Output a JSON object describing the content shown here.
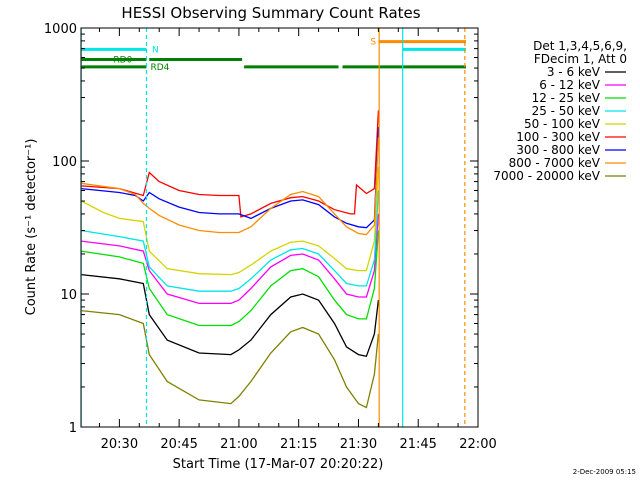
{
  "chart_data": {
    "type": "line",
    "title": "HESSI Observing Summary Count Rates",
    "xlabel": "Start Time (17-Mar-07 20:20:22)",
    "ylabel": "Count Rate (s⁻¹ detector⁻¹)",
    "x_range_minutes": [
      20.37,
      120.0
    ],
    "ylim": [
      1,
      1000
    ],
    "y_scale": "log",
    "x_ticks": [
      {
        "t": 30,
        "label": "20:30"
      },
      {
        "t": 45,
        "label": "20:45"
      },
      {
        "t": 60,
        "label": "21:00"
      },
      {
        "t": 75,
        "label": "21:15"
      },
      {
        "t": 90,
        "label": "21:30"
      },
      {
        "t": 105,
        "label": "21:45"
      },
      {
        "t": 120,
        "label": "22:00"
      }
    ],
    "y_ticks": [
      {
        "v": 1,
        "label": "1"
      },
      {
        "v": 10,
        "label": "10"
      },
      {
        "v": 100,
        "label": "100"
      },
      {
        "v": 1000,
        "label": "1000"
      }
    ],
    "legend_header": [
      "Det 1,3,4,5,6,9,",
      "FDecim 1, Att 0"
    ],
    "legend_placement": "right",
    "series": [
      {
        "name": "3 - 6 keV",
        "color": "#000000",
        "points": [
          [
            20.4,
            14
          ],
          [
            30,
            13
          ],
          [
            36,
            12
          ],
          [
            37.5,
            7
          ],
          [
            42,
            4.5
          ],
          [
            50,
            3.6
          ],
          [
            58,
            3.5
          ],
          [
            60,
            3.8
          ],
          [
            63,
            4.5
          ],
          [
            68,
            7
          ],
          [
            73,
            9.5
          ],
          [
            76,
            10
          ],
          [
            80,
            9
          ],
          [
            84,
            6
          ],
          [
            87,
            4
          ],
          [
            90,
            3.5
          ],
          [
            92,
            3.4
          ],
          [
            94,
            5
          ],
          [
            95,
            9
          ]
        ]
      },
      {
        "name": "6 - 12 keV",
        "color": "#ff00ff",
        "points": [
          [
            20.4,
            25
          ],
          [
            30,
            23
          ],
          [
            36,
            21
          ],
          [
            37.5,
            15
          ],
          [
            42,
            10
          ],
          [
            50,
            8.5
          ],
          [
            58,
            8.5
          ],
          [
            60,
            9
          ],
          [
            63,
            11
          ],
          [
            68,
            16
          ],
          [
            73,
            19.5
          ],
          [
            76,
            20
          ],
          [
            80,
            18
          ],
          [
            84,
            13
          ],
          [
            87,
            10
          ],
          [
            90,
            9.5
          ],
          [
            92,
            9.5
          ],
          [
            94,
            15
          ],
          [
            95,
            40
          ]
        ]
      },
      {
        "name": "12 - 25 keV",
        "color": "#00e000",
        "points": [
          [
            20.4,
            21
          ],
          [
            30,
            19
          ],
          [
            36,
            17
          ],
          [
            37.5,
            11
          ],
          [
            42,
            7
          ],
          [
            50,
            5.8
          ],
          [
            58,
            5.8
          ],
          [
            60,
            6.2
          ],
          [
            63,
            7.5
          ],
          [
            68,
            11.5
          ],
          [
            73,
            15
          ],
          [
            76,
            15.5
          ],
          [
            80,
            13.5
          ],
          [
            84,
            9
          ],
          [
            87,
            7
          ],
          [
            90,
            6.5
          ],
          [
            92,
            6.5
          ],
          [
            94,
            11
          ],
          [
            95,
            30
          ]
        ]
      },
      {
        "name": "25 - 50 keV",
        "color": "#00e5e5",
        "points": [
          [
            20.4,
            30
          ],
          [
            30,
            27
          ],
          [
            36,
            25
          ],
          [
            37.5,
            16
          ],
          [
            42,
            11.5
          ],
          [
            50,
            10.5
          ],
          [
            58,
            10.5
          ],
          [
            60,
            11
          ],
          [
            63,
            13
          ],
          [
            68,
            18
          ],
          [
            73,
            21.5
          ],
          [
            76,
            22
          ],
          [
            80,
            20
          ],
          [
            84,
            15
          ],
          [
            87,
            12
          ],
          [
            90,
            11.5
          ],
          [
            92,
            11.5
          ],
          [
            94,
            18
          ],
          [
            95,
            60
          ]
        ]
      },
      {
        "name": "50 - 100 keV",
        "color": "#d4d400",
        "points": [
          [
            20.4,
            50
          ],
          [
            26,
            41
          ],
          [
            30,
            37
          ],
          [
            36,
            35
          ],
          [
            37.5,
            21
          ],
          [
            42,
            15.5
          ],
          [
            50,
            14.2
          ],
          [
            58,
            14
          ],
          [
            60,
            14.5
          ],
          [
            63,
            16.5
          ],
          [
            68,
            21
          ],
          [
            73,
            24.5
          ],
          [
            76,
            25
          ],
          [
            80,
            23
          ],
          [
            84,
            18.5
          ],
          [
            87,
            15.5
          ],
          [
            90,
            15
          ],
          [
            92,
            15
          ],
          [
            94,
            25
          ],
          [
            95,
            90
          ]
        ]
      },
      {
        "name": "100 - 300 keV",
        "color": "#ff0000",
        "points": [
          [
            20.4,
            65
          ],
          [
            30,
            62
          ],
          [
            36,
            55
          ],
          [
            37.5,
            82
          ],
          [
            40,
            70
          ],
          [
            45,
            60
          ],
          [
            50,
            56
          ],
          [
            55,
            55
          ],
          [
            60,
            55
          ],
          [
            60.5,
            38
          ],
          [
            63,
            40
          ],
          [
            68,
            48
          ],
          [
            73,
            53
          ],
          [
            76,
            54
          ],
          [
            80,
            50
          ],
          [
            84,
            43
          ],
          [
            88,
            40
          ],
          [
            89,
            40
          ],
          [
            89.5,
            66
          ],
          [
            92,
            57
          ],
          [
            94,
            62
          ],
          [
            95,
            240
          ]
        ]
      },
      {
        "name": "300 - 800 keV",
        "color": "#0000ff",
        "points": [
          [
            20.4,
            62
          ],
          [
            30,
            58
          ],
          [
            34,
            55
          ],
          [
            36,
            50
          ],
          [
            37.5,
            58
          ],
          [
            40,
            52
          ],
          [
            45,
            45
          ],
          [
            50,
            41
          ],
          [
            55,
            40
          ],
          [
            60,
            40
          ],
          [
            63,
            37
          ],
          [
            68,
            44
          ],
          [
            73,
            50
          ],
          [
            76,
            51
          ],
          [
            80,
            47
          ],
          [
            84,
            38
          ],
          [
            87,
            34
          ],
          [
            90,
            32
          ],
          [
            92,
            31.5
          ],
          [
            94,
            36
          ],
          [
            95,
            180
          ]
        ]
      },
      {
        "name": "800 - 7000 keV",
        "color": "#ff8c00",
        "points": [
          [
            20.4,
            68
          ],
          [
            30,
            62
          ],
          [
            34,
            56
          ],
          [
            36,
            48
          ],
          [
            37.5,
            44
          ],
          [
            40,
            39
          ],
          [
            45,
            33
          ],
          [
            50,
            30
          ],
          [
            55,
            29
          ],
          [
            60,
            29
          ],
          [
            63,
            32
          ],
          [
            68,
            44
          ],
          [
            73,
            56
          ],
          [
            76,
            59
          ],
          [
            80,
            54
          ],
          [
            84,
            40
          ],
          [
            87,
            32
          ],
          [
            90,
            28.5
          ],
          [
            92,
            28
          ],
          [
            94,
            33
          ],
          [
            95,
            150
          ]
        ]
      },
      {
        "name": "7000 - 20000 keV",
        "color": "#808000",
        "points": [
          [
            20.4,
            7.5
          ],
          [
            30,
            7
          ],
          [
            36,
            6
          ],
          [
            37.5,
            3.5
          ],
          [
            42,
            2.2
          ],
          [
            50,
            1.6
          ],
          [
            58,
            1.5
          ],
          [
            60,
            1.7
          ],
          [
            63,
            2.2
          ],
          [
            68,
            3.6
          ],
          [
            73,
            5.2
          ],
          [
            76,
            5.6
          ],
          [
            80,
            5
          ],
          [
            84,
            3.2
          ],
          [
            87,
            2
          ],
          [
            90,
            1.5
          ],
          [
            92,
            1.4
          ],
          [
            94,
            2.5
          ],
          [
            95,
            5
          ]
        ]
      }
    ],
    "markers": [
      {
        "label": "",
        "color": "#00e5e5",
        "t": 20.4,
        "style": "solid"
      },
      {
        "label": "",
        "color": "#00e5e5",
        "t": 36.8,
        "style": "dashed"
      },
      {
        "label": "",
        "color": "#ff8c00",
        "t": 95.2,
        "style": "solid"
      },
      {
        "label": "",
        "color": "#00e5e5",
        "t": 101.1,
        "style": "solid"
      },
      {
        "label": "",
        "color": "#ff8c00",
        "t": 116.7,
        "style": "dashed"
      }
    ],
    "state_bars": [
      {
        "color": "#00e5e5",
        "label": "N",
        "label_t": 38.2,
        "level": 690,
        "segments": [
          [
            20.4,
            36.8
          ]
        ]
      },
      {
        "color": "#00e5e5",
        "label": "",
        "label_t": 0,
        "level": 690,
        "segments": [
          [
            101.1,
            117.0
          ]
        ]
      },
      {
        "color": "#008000",
        "label": "RD0",
        "label_t": 28.5,
        "level": 580,
        "segments": [
          [
            20.4,
            36.8
          ],
          [
            37.5,
            60.8
          ]
        ]
      },
      {
        "color": "#008000",
        "label": "RD4",
        "label_t": 37.8,
        "level": 510,
        "segments": [
          [
            20.4,
            36.8
          ],
          [
            61.3,
            85.0
          ],
          [
            86.0,
            117.0
          ]
        ]
      },
      {
        "color": "#ff8c00",
        "label": "S",
        "label_t": 93.0,
        "level": 790,
        "segments": [
          [
            95.0,
            117.0
          ]
        ]
      }
    ],
    "footer_date": "2-Dec-2009 05:15"
  }
}
